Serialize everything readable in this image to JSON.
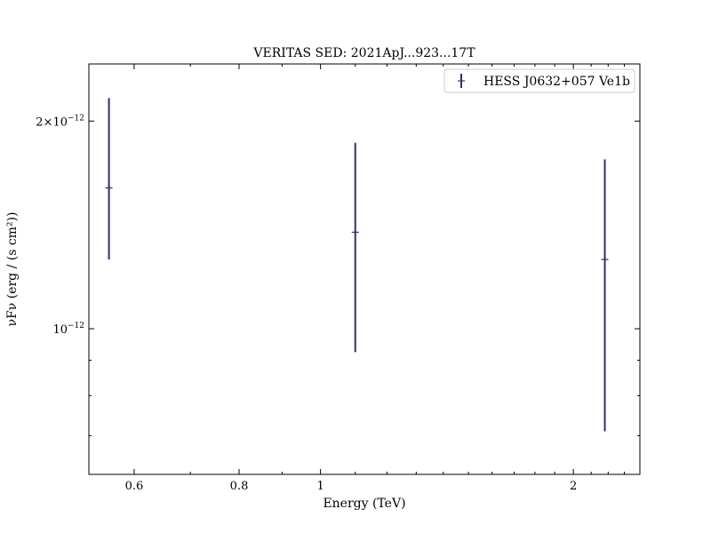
{
  "chart_data": {
    "type": "scatter",
    "title": "VERITAS SED: 2021ApJ...923...17T",
    "xlabel": "Energy (TeV)",
    "ylabel": "νFν (erg / (s cm²))",
    "x_scale": "log",
    "y_scale": "log",
    "xlim": [
      0.53,
      2.4
    ],
    "ylim": [
      6.15e-13,
      2.42e-12
    ],
    "grid": false,
    "legend": {
      "position": "upper right",
      "entries": [
        "HESS J0632+057 Ve1b"
      ]
    },
    "x_ticks": [
      {
        "value": 0.6,
        "label": "0.6"
      },
      {
        "value": 0.8,
        "label": "0.8"
      },
      {
        "value": 1.0,
        "label": "1"
      },
      {
        "value": 2.0,
        "label": "2"
      }
    ],
    "y_ticks": [
      {
        "value": 1e-12,
        "label": "10^-12"
      },
      {
        "value": 2e-12,
        "label": "2×10^-12"
      }
    ],
    "series": [
      {
        "name": "HESS J0632+057 Ve1b",
        "color": "#2e2e6e",
        "points": [
          {
            "x": 0.56,
            "y": 1.6e-12,
            "y_low": 1.26e-12,
            "y_high": 2.16e-12
          },
          {
            "x": 1.1,
            "y": 1.38e-12,
            "y_low": 9.25e-13,
            "y_high": 1.86e-12
          },
          {
            "x": 2.18,
            "y": 1.26e-12,
            "y_low": 7.1e-13,
            "y_high": 1.76e-12
          }
        ]
      }
    ]
  }
}
